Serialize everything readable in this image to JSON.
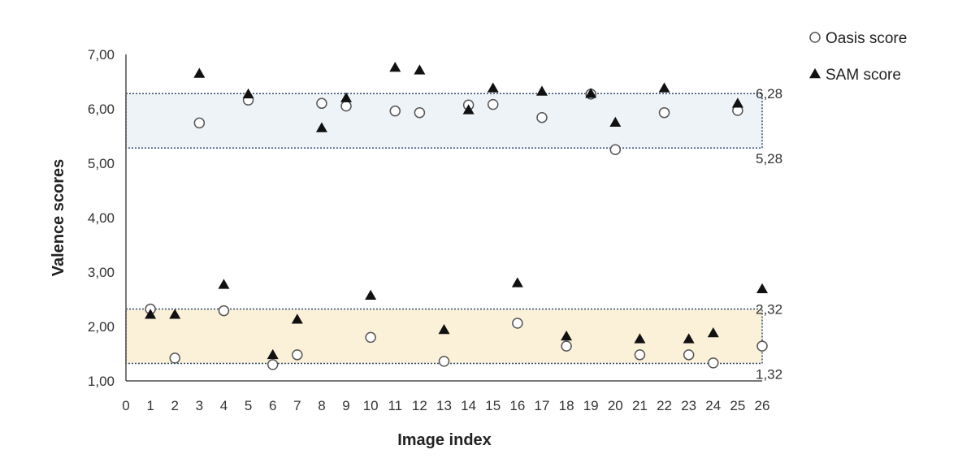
{
  "chart_data": {
    "type": "scatter",
    "title": "",
    "xlabel": "Image index",
    "ylabel": "Valence scores",
    "xlim": [
      0,
      26
    ],
    "ylim": [
      1.0,
      7.0
    ],
    "x_ticks": [
      "0",
      "1",
      "2",
      "3",
      "4",
      "5",
      "6",
      "7",
      "8",
      "9",
      "10",
      "11",
      "12",
      "13",
      "14",
      "15",
      "16",
      "17",
      "18",
      "19",
      "20",
      "21",
      "22",
      "23",
      "24",
      "25",
      "26"
    ],
    "y_ticks": [
      {
        "value": 1.0,
        "label": "1,00"
      },
      {
        "value": 2.0,
        "label": "2,00"
      },
      {
        "value": 3.0,
        "label": "3,00"
      },
      {
        "value": 4.0,
        "label": "4,00"
      },
      {
        "value": 5.0,
        "label": "5,00"
      },
      {
        "value": 6.0,
        "label": "6,00"
      },
      {
        "value": 7.0,
        "label": "7,00"
      }
    ],
    "grid": false,
    "legend_position": "top-right",
    "series": [
      {
        "name": "Oasis score",
        "marker": "circle-open",
        "x": [
          1,
          2,
          3,
          4,
          5,
          6,
          7,
          8,
          9,
          10,
          11,
          12,
          13,
          14,
          15,
          16,
          17,
          18,
          19,
          20,
          21,
          22,
          23,
          24,
          25,
          26
        ],
        "values": [
          2.32,
          1.42,
          5.74,
          2.29,
          6.16,
          1.3,
          1.48,
          6.1,
          6.05,
          1.8,
          5.96,
          5.93,
          1.36,
          6.07,
          6.08,
          2.06,
          5.84,
          1.64,
          6.27,
          5.25,
          1.48,
          5.93,
          1.48,
          1.33,
          5.97,
          1.64
        ]
      },
      {
        "name": "SAM score",
        "marker": "triangle-filled",
        "x": [
          1,
          2,
          3,
          4,
          5,
          6,
          7,
          8,
          9,
          10,
          11,
          12,
          13,
          14,
          15,
          16,
          17,
          18,
          19,
          20,
          21,
          22,
          23,
          24,
          25,
          26
        ],
        "values": [
          2.22,
          2.22,
          6.65,
          2.77,
          6.27,
          1.48,
          2.13,
          5.65,
          6.2,
          2.57,
          6.76,
          6.71,
          1.94,
          5.98,
          6.38,
          2.8,
          6.32,
          1.82,
          6.28,
          5.75,
          1.77,
          6.38,
          1.77,
          1.88,
          6.1,
          2.69
        ]
      }
    ],
    "bands": [
      {
        "lower": 5.28,
        "upper": 6.28,
        "lower_label": "5,28",
        "upper_label": "6,28",
        "fill": "#eef3f8",
        "stroke": "#2e4a6b"
      },
      {
        "lower": 1.32,
        "upper": 2.32,
        "lower_label": "1,32",
        "upper_label": "2,32",
        "fill": "#fbf0d8",
        "stroke": "#2e4a6b"
      }
    ],
    "colors": {
      "axis": "#4d4d4d",
      "marker_open": "#555555",
      "marker_filled": "#111111"
    }
  }
}
